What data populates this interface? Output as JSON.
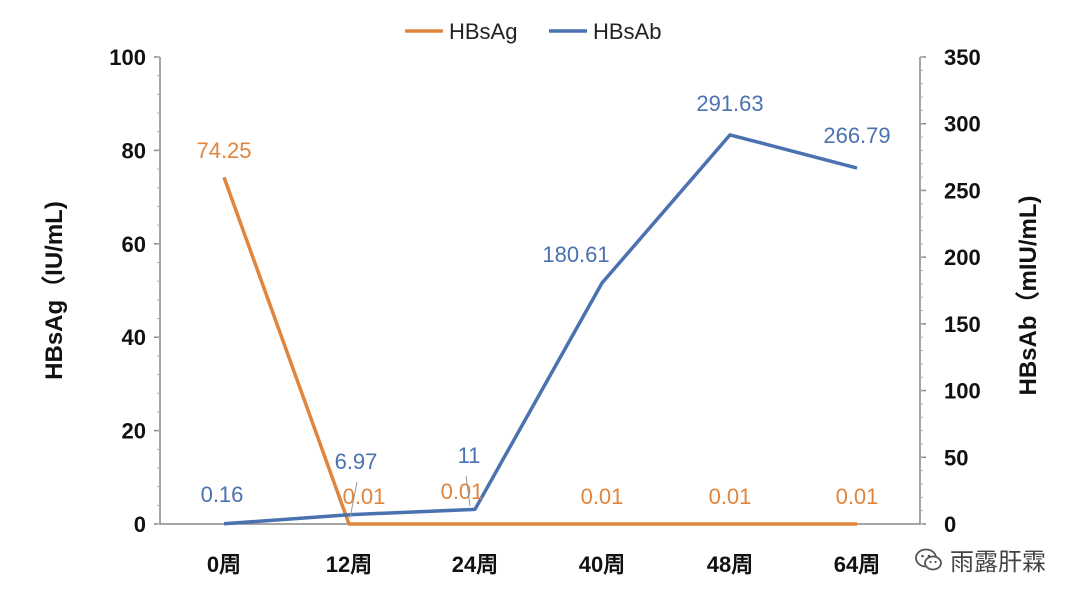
{
  "chart_data": {
    "type": "line",
    "categories": [
      "0周",
      "12周",
      "24周",
      "40周",
      "48周",
      "64周"
    ],
    "series": [
      {
        "name": "HBsAg",
        "axis": "left",
        "color": "#E0853D",
        "values": [
          74.25,
          0.01,
          0.01,
          0.01,
          0.01,
          0.01
        ],
        "labels": [
          "74.25",
          "0.01",
          "0.01",
          "0.01",
          "0.01",
          "0.01"
        ]
      },
      {
        "name": "HBsAb",
        "axis": "right",
        "color": "#4A72B0",
        "values": [
          0.16,
          6.97,
          11,
          180.61,
          291.63,
          266.79
        ],
        "labels": [
          "0.16",
          "6.97",
          "11",
          "180.61",
          "291.63",
          "266.79"
        ]
      }
    ],
    "y_left": {
      "label": "HBsAg（IU/mL)",
      "ylim": [
        0,
        100
      ],
      "ticks": [
        "0",
        "20",
        "40",
        "60",
        "80",
        "100"
      ]
    },
    "y_right": {
      "label": "HBsAb（mIU/mL)",
      "ylim": [
        0,
        350
      ],
      "ticks": [
        "0",
        "50",
        "100",
        "150",
        "200",
        "250",
        "300",
        "350"
      ]
    },
    "legend": "top-center",
    "grid": false
  },
  "watermark": {
    "text": "雨露肝霖",
    "icon": "wechat-icon"
  }
}
